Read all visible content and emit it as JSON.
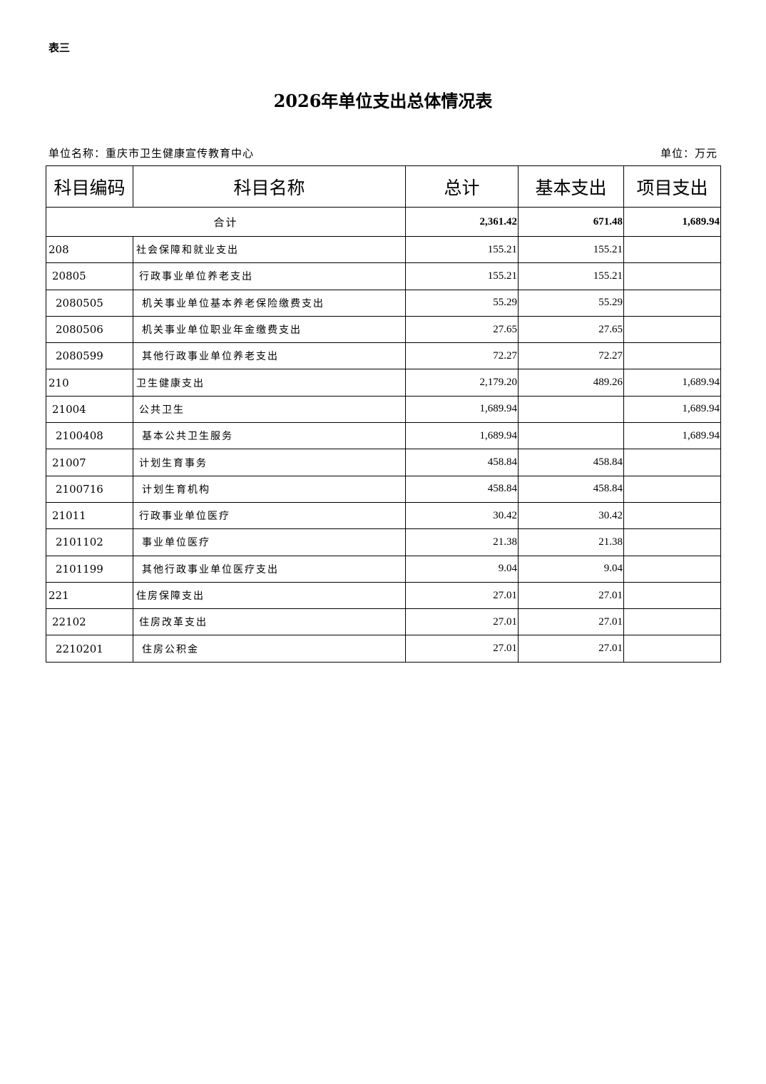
{
  "doc_label": "表三",
  "title": "2026年单位支出总体情况表",
  "unit_name": "单位名称：重庆市卫生健康宣传教育中心",
  "unit": "单位：万元",
  "table": {
    "headers": [
      "科目编码",
      "科目名称",
      "总计",
      "基本支出",
      "项目支出"
    ],
    "total": {
      "label": "合计",
      "total": "2,361.42",
      "basic": "671.48",
      "project": "1,689.94"
    },
    "rows": [
      {
        "level": 0,
        "code": "208",
        "name": "社会保障和就业支出",
        "total": "155.21",
        "basic": "155.21",
        "project": ""
      },
      {
        "level": 1,
        "code": "20805",
        "name": "行政事业单位养老支出",
        "total": "155.21",
        "basic": "155.21",
        "project": ""
      },
      {
        "level": 2,
        "code": "2080505",
        "name": "机关事业单位基本养老保险缴费支出",
        "total": "55.29",
        "basic": "55.29",
        "project": ""
      },
      {
        "level": 2,
        "code": "2080506",
        "name": "机关事业单位职业年金缴费支出",
        "total": "27.65",
        "basic": "27.65",
        "project": ""
      },
      {
        "level": 2,
        "code": "2080599",
        "name": "其他行政事业单位养老支出",
        "total": "72.27",
        "basic": "72.27",
        "project": ""
      },
      {
        "level": 0,
        "code": "210",
        "name": "卫生健康支出",
        "total": "2,179.20",
        "basic": "489.26",
        "project": "1,689.94"
      },
      {
        "level": 1,
        "code": "21004",
        "name": "公共卫生",
        "total": "1,689.94",
        "basic": "",
        "project": "1,689.94"
      },
      {
        "level": 2,
        "code": "2100408",
        "name": "基本公共卫生服务",
        "total": "1,689.94",
        "basic": "",
        "project": "1,689.94"
      },
      {
        "level": 1,
        "code": "21007",
        "name": "计划生育事务",
        "total": "458.84",
        "basic": "458.84",
        "project": ""
      },
      {
        "level": 2,
        "code": "2100716",
        "name": "计划生育机构",
        "total": "458.84",
        "basic": "458.84",
        "project": ""
      },
      {
        "level": 1,
        "code": "21011",
        "name": "行政事业单位医疗",
        "total": "30.42",
        "basic": "30.42",
        "project": ""
      },
      {
        "level": 2,
        "code": "2101102",
        "name": "事业单位医疗",
        "total": "21.38",
        "basic": "21.38",
        "project": ""
      },
      {
        "level": 2,
        "code": "2101199",
        "name": "其他行政事业单位医疗支出",
        "total": "9.04",
        "basic": "9.04",
        "project": ""
      },
      {
        "level": 0,
        "code": "221",
        "name": "住房保障支出",
        "total": "27.01",
        "basic": "27.01",
        "project": ""
      },
      {
        "level": 1,
        "code": "22102",
        "name": "住房改革支出",
        "total": "27.01",
        "basic": "27.01",
        "project": ""
      },
      {
        "level": 2,
        "code": "2210201",
        "name": "住房公积金",
        "total": "27.01",
        "basic": "27.01",
        "project": ""
      }
    ]
  }
}
